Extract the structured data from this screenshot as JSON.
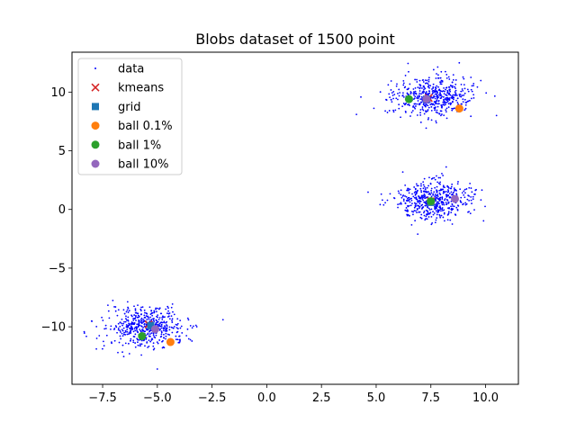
{
  "chart_data": {
    "type": "scatter",
    "title": "Blobs dataset of 1500 point",
    "xlabel": "",
    "ylabel": "",
    "xlim": [
      -8.9,
      11.5
    ],
    "ylim": [
      -14.9,
      13.4
    ],
    "xticks": [
      -7.5,
      -5.0,
      -2.5,
      0.0,
      2.5,
      5.0,
      7.5,
      10.0
    ],
    "xtick_labels": [
      "−7.5",
      "−5.0",
      "−2.5",
      "0.0",
      "2.5",
      "5.0",
      "7.5",
      "10.0"
    ],
    "yticks": [
      -10,
      -5,
      0,
      5,
      10
    ],
    "ytick_labels": [
      "−10",
      "−5",
      "0",
      "5",
      "10"
    ],
    "grid": false,
    "legend_position": "top-left",
    "data_series": {
      "name": "data",
      "color": "#0000ff",
      "point_count": 1500,
      "clusters": [
        {
          "center": [
            -5.6,
            -10.0
          ],
          "spread": [
            0.9,
            0.85
          ],
          "n": 500
        },
        {
          "center": [
            7.6,
            0.8
          ],
          "spread": [
            0.9,
            0.85
          ],
          "n": 500
        },
        {
          "center": [
            7.6,
            9.6
          ],
          "spread": [
            0.9,
            0.85
          ],
          "n": 500
        }
      ],
      "outliers": [
        [
          4.1,
          8.1
        ],
        [
          10.5,
          8.0
        ],
        [
          -2.0,
          -9.4
        ],
        [
          -8.0,
          -9.5
        ],
        [
          -5.0,
          -13.6
        ],
        [
          6.9,
          -2.1
        ]
      ]
    },
    "series": [
      {
        "name": "kmeans",
        "marker": "x",
        "color": "#d62728",
        "points": [
          [
            -5.4,
            -9.8
          ],
          [
            7.5,
            0.7
          ],
          [
            7.4,
            9.5
          ]
        ]
      },
      {
        "name": "grid",
        "marker": "square",
        "color": "#1f77b4",
        "points": [
          [
            -5.3,
            -9.9
          ],
          [
            7.5,
            0.6
          ],
          [
            7.3,
            9.4
          ]
        ]
      },
      {
        "name": "ball 0.1%",
        "marker": "circle",
        "color": "#ff7f0e",
        "points": [
          [
            -4.4,
            -11.3
          ],
          [
            8.8,
            8.6
          ],
          [
            7.5,
            0.7
          ]
        ]
      },
      {
        "name": "ball 1%",
        "marker": "circle",
        "color": "#2ca02c",
        "points": [
          [
            -5.7,
            -10.8
          ],
          [
            7.5,
            0.7
          ],
          [
            6.5,
            9.4
          ]
        ]
      },
      {
        "name": "ball 10%",
        "marker": "circle",
        "color": "#9467bd",
        "points": [
          [
            -5.1,
            -10.2
          ],
          [
            8.6,
            0.9
          ],
          [
            7.3,
            9.4
          ]
        ]
      }
    ]
  }
}
